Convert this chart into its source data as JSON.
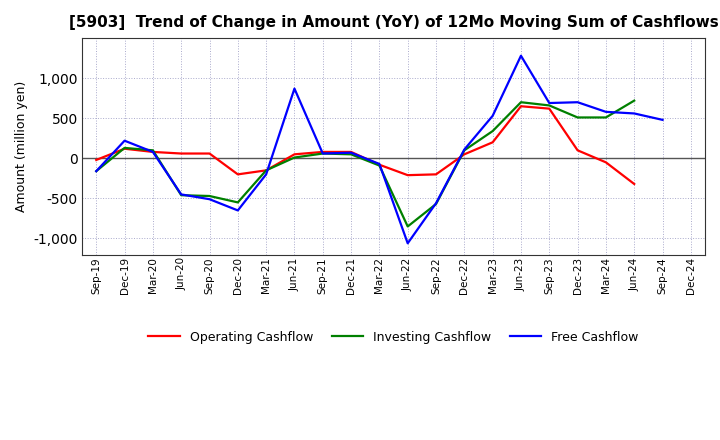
{
  "title": "[5903]  Trend of Change in Amount (YoY) of 12Mo Moving Sum of Cashflows",
  "ylabel": "Amount (million yen)",
  "x_labels": [
    "Sep-19",
    "Dec-19",
    "Mar-20",
    "Jun-20",
    "Sep-20",
    "Dec-20",
    "Mar-21",
    "Jun-21",
    "Sep-21",
    "Dec-21",
    "Mar-22",
    "Jun-22",
    "Sep-22",
    "Dec-22",
    "Mar-23",
    "Jun-23",
    "Sep-23",
    "Dec-23",
    "Mar-24",
    "Jun-24",
    "Sep-24",
    "Dec-24"
  ],
  "operating": [
    -20,
    120,
    80,
    60,
    60,
    -200,
    -150,
    50,
    80,
    80,
    -80,
    -210,
    -200,
    50,
    200,
    650,
    620,
    100,
    -50,
    -320,
    null,
    null
  ],
  "investing": [
    -160,
    130,
    100,
    -460,
    -470,
    -550,
    -150,
    10,
    60,
    50,
    -90,
    -850,
    -570,
    100,
    340,
    700,
    660,
    510,
    510,
    720,
    null,
    null
  ],
  "free": [
    -160,
    220,
    80,
    -450,
    -510,
    -650,
    -200,
    870,
    60,
    70,
    -70,
    -1060,
    -560,
    110,
    530,
    1280,
    690,
    700,
    580,
    560,
    480,
    null
  ],
  "ylim": [
    -1200,
    1500
  ],
  "yticks": [
    -1000,
    -500,
    0,
    500,
    1000
  ],
  "colors": {
    "operating": "#ff0000",
    "investing": "#008000",
    "free": "#0000ff"
  },
  "legend_labels": [
    "Operating Cashflow",
    "Investing Cashflow",
    "Free Cashflow"
  ],
  "bg_color": "#ffffff",
  "plot_bg_color": "#ffffff"
}
